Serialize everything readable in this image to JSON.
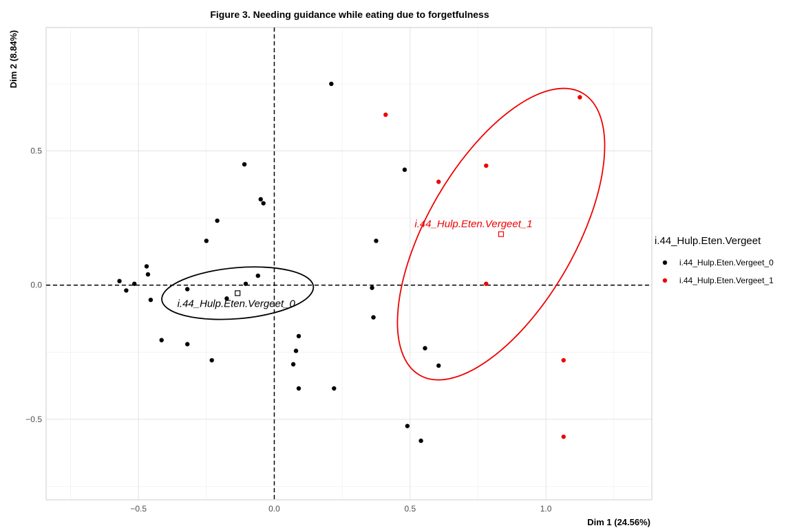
{
  "chart_data": {
    "type": "scatter",
    "title": "Figure 3. Needing guidance while eating due to forgetfulness",
    "xlabel": "Dim 1 (24.56%)",
    "ylabel": "Dim 2 (8.84%)",
    "xlim": [
      -0.84,
      1.39
    ],
    "ylim": [
      -0.8,
      0.96
    ],
    "x_ticks": [
      -0.5,
      0.0,
      0.5,
      1.0
    ],
    "x_tick_labels": [
      "−0.5",
      "0.0",
      "0.5",
      "1.0"
    ],
    "y_ticks": [
      -0.5,
      0.0,
      0.5
    ],
    "y_tick_labels": [
      "−0.5",
      "0.0",
      "0.5"
    ],
    "grid": true,
    "reference_lines": {
      "x": 0,
      "y": 0,
      "style": "dashed"
    },
    "legend": {
      "title": "i.44_Hulp.Eten.Vergeet",
      "position": "right",
      "entries": [
        "i.44_Hulp.Eten.Vergeet_0",
        "i.44_Hulp.Eten.Vergeet_1"
      ]
    },
    "series": [
      {
        "name": "i.44_Hulp.Eten.Vergeet_0",
        "color": "#000000",
        "points": [
          {
            "x": 0.21,
            "y": 0.75
          },
          {
            "x": -0.11,
            "y": 0.45
          },
          {
            "x": 0.48,
            "y": 0.43
          },
          {
            "x": -0.05,
            "y": 0.32
          },
          {
            "x": -0.04,
            "y": 0.305
          },
          {
            "x": -0.21,
            "y": 0.24
          },
          {
            "x": -0.25,
            "y": 0.165
          },
          {
            "x": 0.375,
            "y": 0.165
          },
          {
            "x": -0.47,
            "y": 0.07
          },
          {
            "x": -0.465,
            "y": 0.04
          },
          {
            "x": -0.57,
            "y": 0.015
          },
          {
            "x": -0.515,
            "y": 0.005
          },
          {
            "x": -0.545,
            "y": -0.02
          },
          {
            "x": -0.06,
            "y": 0.035
          },
          {
            "x": -0.105,
            "y": 0.005
          },
          {
            "x": -0.32,
            "y": -0.015
          },
          {
            "x": 0.36,
            "y": -0.01
          },
          {
            "x": -0.455,
            "y": -0.055
          },
          {
            "x": -0.175,
            "y": -0.05
          },
          {
            "x": 0.365,
            "y": -0.12
          },
          {
            "x": -0.415,
            "y": -0.205
          },
          {
            "x": -0.32,
            "y": -0.22
          },
          {
            "x": 0.09,
            "y": -0.19
          },
          {
            "x": 0.08,
            "y": -0.245
          },
          {
            "x": -0.23,
            "y": -0.28
          },
          {
            "x": 0.07,
            "y": -0.295
          },
          {
            "x": 0.605,
            "y": -0.3
          },
          {
            "x": 0.555,
            "y": -0.235
          },
          {
            "x": 0.09,
            "y": -0.385
          },
          {
            "x": 0.22,
            "y": -0.385
          },
          {
            "x": 0.49,
            "y": -0.525
          },
          {
            "x": 0.54,
            "y": -0.58
          }
        ],
        "centroid": {
          "x": -0.135,
          "y": -0.03,
          "label": "i.44_Hulp.Eten.Vergeet_0"
        },
        "ellipse": {
          "cx": -0.135,
          "cy": -0.03,
          "rx": 0.28,
          "ry": 0.095,
          "angle": -5
        }
      },
      {
        "name": "i.44_Hulp.Eten.Vergeet_1",
        "color": "#ee0000",
        "points": [
          {
            "x": 1.125,
            "y": 0.7
          },
          {
            "x": 0.41,
            "y": 0.635
          },
          {
            "x": 0.78,
            "y": 0.445
          },
          {
            "x": 0.605,
            "y": 0.385
          },
          {
            "x": 0.78,
            "y": 0.005
          },
          {
            "x": 1.065,
            "y": -0.28
          },
          {
            "x": 1.065,
            "y": -0.565
          }
        ],
        "centroid": {
          "x": 0.835,
          "y": 0.19,
          "label": "i.44_Hulp.Eten.Vergeet_1"
        },
        "ellipse": {
          "cx": 0.835,
          "cy": 0.19,
          "rx": 0.6,
          "ry": 0.275,
          "angle": -60
        }
      }
    ]
  }
}
